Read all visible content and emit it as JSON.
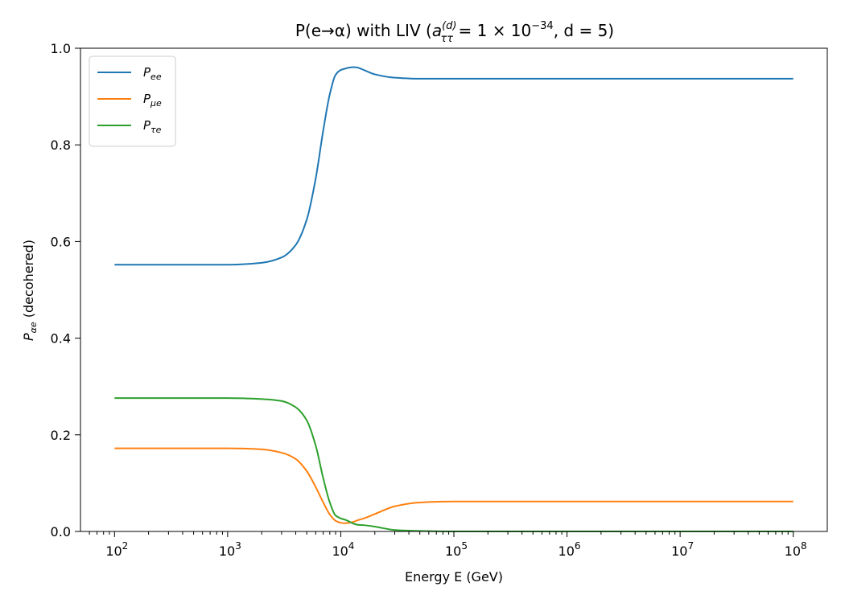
{
  "chart_data": {
    "type": "line",
    "title": {
      "prefix": "P(e→α) with LIV (",
      "a_sym": "a",
      "a_sup": "(d)",
      "a_sub": "ττ",
      "eq": " = 1 × 10",
      "exp": "−34",
      "d_part": ", d = 5)"
    },
    "xlabel": "Energy E (GeV)",
    "ylabel": {
      "p": "P",
      "sub": "αe",
      "rest": "  (decohered)"
    },
    "x_scale": "log",
    "xlim": [
      50,
      200000000
    ],
    "ylim": [
      0,
      1
    ],
    "x_ticks": [
      {
        "value": 100,
        "base": "10",
        "exp": "2"
      },
      {
        "value": 1000,
        "base": "10",
        "exp": "3"
      },
      {
        "value": 10000,
        "base": "10",
        "exp": "4"
      },
      {
        "value": 100000,
        "base": "10",
        "exp": "5"
      },
      {
        "value": 1000000,
        "base": "10",
        "exp": "6"
      },
      {
        "value": 10000000,
        "base": "10",
        "exp": "7"
      },
      {
        "value": 100000000,
        "base": "10",
        "exp": "8"
      }
    ],
    "y_ticks": [
      {
        "value": 0,
        "label": "0.0"
      },
      {
        "value": 0.2,
        "label": "0.2"
      },
      {
        "value": 0.4,
        "label": "0.4"
      },
      {
        "value": 0.6,
        "label": "0.6"
      },
      {
        "value": 0.8,
        "label": "0.8"
      },
      {
        "value": 1.0,
        "label": "1.0"
      }
    ],
    "grid": false,
    "legend_position": "top-left",
    "series": [
      {
        "name": "P_ee",
        "label_main": "P",
        "label_sub": "ee",
        "color": "#1f77b4",
        "x": [
          100,
          1000,
          2000,
          3000,
          4000,
          5000,
          6000,
          7000,
          8000,
          9000,
          10000,
          11000,
          12000,
          13000,
          14000,
          16000,
          20000,
          30000,
          50000,
          100000,
          1000000,
          10000000,
          100000000
        ],
        "y": [
          0.552,
          0.552,
          0.556,
          0.567,
          0.593,
          0.645,
          0.73,
          0.83,
          0.905,
          0.945,
          0.955,
          0.958,
          0.96,
          0.961,
          0.96,
          0.955,
          0.946,
          0.939,
          0.937,
          0.937,
          0.937,
          0.937,
          0.937
        ]
      },
      {
        "name": "P_μe",
        "label_main": "P",
        "label_sub": "μe",
        "color": "#ff7f0e",
        "x": [
          100,
          1000,
          2000,
          3000,
          4000,
          5000,
          6000,
          7000,
          8000,
          9000,
          10000,
          11000,
          12000,
          13000,
          14000,
          16000,
          20000,
          30000,
          50000,
          100000,
          1000000,
          10000000,
          100000000
        ],
        "y": [
          0.172,
          0.172,
          0.17,
          0.163,
          0.15,
          0.125,
          0.092,
          0.06,
          0.035,
          0.022,
          0.018,
          0.017,
          0.018,
          0.02,
          0.023,
          0.027,
          0.036,
          0.052,
          0.06,
          0.062,
          0.062,
          0.062,
          0.062
        ]
      },
      {
        "name": "P_τe",
        "label_main": "P",
        "label_sub": "τe",
        "color": "#2ca02c",
        "x": [
          100,
          1000,
          2000,
          3000,
          4000,
          5000,
          6000,
          7000,
          8000,
          9000,
          10000,
          11000,
          12000,
          13000,
          14000,
          16000,
          20000,
          30000,
          50000,
          100000,
          1000000,
          10000000,
          100000000
        ],
        "y": [
          0.276,
          0.276,
          0.274,
          0.27,
          0.257,
          0.23,
          0.178,
          0.11,
          0.06,
          0.033,
          0.027,
          0.024,
          0.02,
          0.016,
          0.014,
          0.013,
          0.01,
          0.003,
          0.001,
          0.0,
          0.0,
          0.0,
          0.0
        ]
      }
    ]
  }
}
